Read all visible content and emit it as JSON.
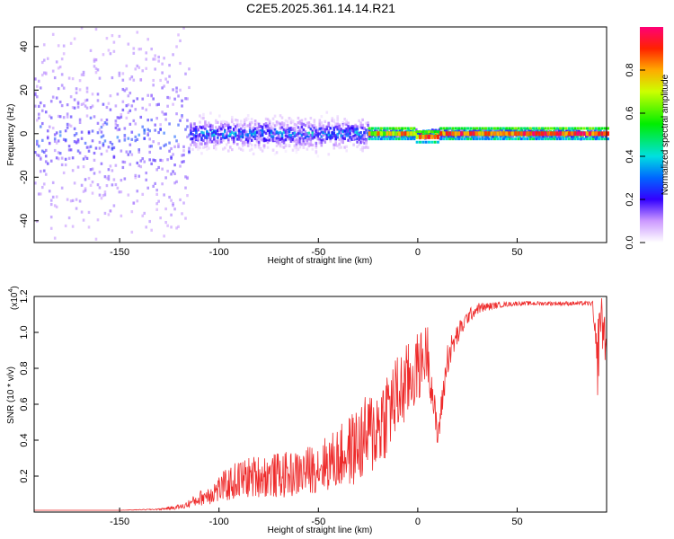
{
  "title": "C2E5.2025.361.14.14.R21",
  "colors": {
    "snr_line": "#ee2a2a",
    "axis": "#000000",
    "background": "#ffffff"
  },
  "chart_data": [
    {
      "type": "heatmap",
      "title": "C2E5.2025.361.14.14.R21",
      "xlabel": "Height of straight line (km)",
      "ylabel": "Frequency (Hz)",
      "xlim": [
        -193,
        95
      ],
      "ylim": [
        -50,
        49
      ],
      "xticks": [
        -150,
        -100,
        -50,
        0,
        50
      ],
      "yticks": [
        -40,
        -20,
        0,
        20,
        40
      ],
      "colorbar": {
        "label": "Normalized spectral amplitude",
        "range": [
          0.0,
          1.0
        ],
        "ticks": [
          0.0,
          0.2,
          0.4,
          0.6,
          0.8
        ]
      },
      "description_of_field": [
        {
          "x_range": [
            -193,
            -115
          ],
          "freq_spread_hz": 45,
          "peak_amplitude": 0.3
        },
        {
          "x_range": [
            -115,
            -25
          ],
          "freq_spread_hz": 8,
          "peak_amplitude": 0.4
        },
        {
          "x_range": [
            -25,
            95
          ],
          "freq_spread_hz": 2,
          "peak_amplitude": 1.0
        }
      ]
    },
    {
      "type": "line",
      "xlabel": "Height of straight line (km)",
      "ylabel": "SNR (10 * v/v)",
      "y_multiplier_label": "(x10",
      "y_multiplier_exp": "4",
      "y_multiplier_close": ")",
      "xlim": [
        -193,
        95
      ],
      "ylim": [
        0,
        1.2
      ],
      "xticks": [
        -150,
        -100,
        -50,
        0,
        50
      ],
      "yticks": [
        0.2,
        0.4,
        0.6,
        0.8,
        1.0,
        1.2
      ],
      "series": [
        {
          "name": "SNR",
          "x": [
            -193,
            -170,
            -150,
            -130,
            -118,
            -110,
            -100,
            -90,
            -80,
            -70,
            -60,
            -50,
            -40,
            -30,
            -20,
            -15,
            -10,
            -5,
            0,
            5,
            10,
            15,
            20,
            25,
            30,
            40,
            50,
            60,
            70,
            80,
            88,
            90,
            92,
            95
          ],
          "values": [
            0.01,
            0.01,
            0.01,
            0.015,
            0.03,
            0.07,
            0.12,
            0.17,
            0.19,
            0.19,
            0.2,
            0.24,
            0.28,
            0.35,
            0.45,
            0.55,
            0.62,
            0.7,
            0.78,
            0.88,
            0.4,
            0.85,
            0.98,
            1.08,
            1.13,
            1.15,
            1.16,
            1.16,
            1.16,
            1.16,
            1.16,
            0.75,
            1.1,
            0.9
          ],
          "noise_amplitude": [
            0.0,
            0.0,
            0.0,
            0.005,
            0.02,
            0.05,
            0.1,
            0.14,
            0.15,
            0.16,
            0.16,
            0.18,
            0.22,
            0.28,
            0.32,
            0.32,
            0.3,
            0.28,
            0.25,
            0.2,
            0.1,
            0.12,
            0.08,
            0.05,
            0.04,
            0.02,
            0.015,
            0.015,
            0.015,
            0.015,
            0.015,
            0.3,
            0.2,
            0.2
          ]
        }
      ]
    }
  ]
}
